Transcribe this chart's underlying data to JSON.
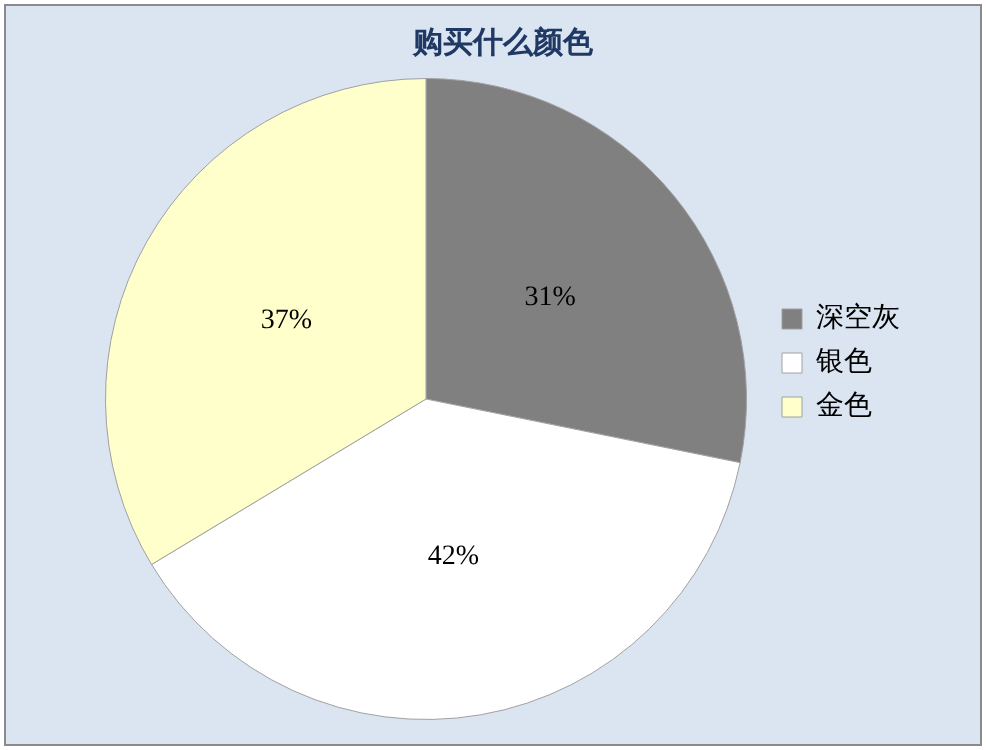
{
  "chart_data": {
    "type": "pie",
    "title": "购买什么颜色",
    "categories": [
      "深空灰",
      "银色",
      "金色"
    ],
    "values": [
      31,
      42,
      37
    ],
    "colors": [
      "#808080",
      "#ffffff",
      "#ffffcc"
    ],
    "value_labels": [
      "31%",
      "42%",
      "37%"
    ],
    "legend": "right"
  }
}
